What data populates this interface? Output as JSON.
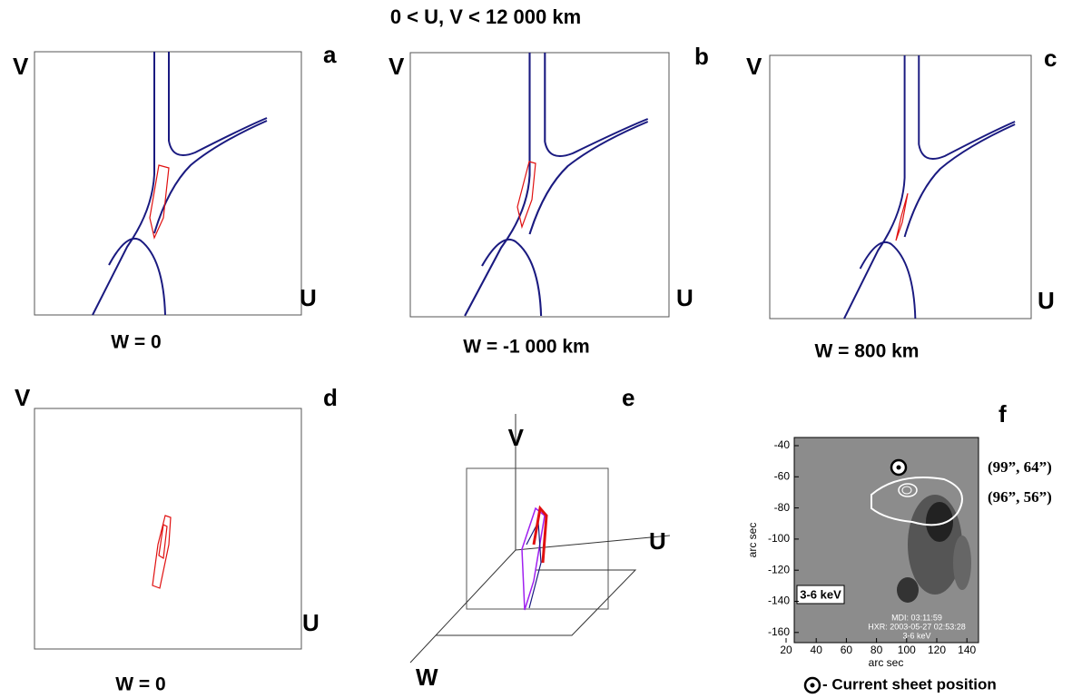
{
  "title": "0 < U, V < 12 000 km",
  "panels": [
    {
      "letter": "a",
      "v_label": "V",
      "u_label": "U",
      "caption": "W = 0"
    },
    {
      "letter": "b",
      "v_label": "V",
      "u_label": "U",
      "caption": "W = -1 000 km"
    },
    {
      "letter": "c",
      "v_label": "V",
      "u_label": "U",
      "caption": "W = 800 km"
    },
    {
      "letter": "d",
      "v_label": "V",
      "u_label": "U",
      "caption": "W = 0"
    }
  ],
  "panel_e": {
    "letter": "e",
    "v_label": "V",
    "u_label": "U",
    "w_label": "W"
  },
  "panel_f": {
    "letter": "f",
    "yticks": [
      "-40",
      "-60",
      "-80",
      "-100",
      "-120",
      "-140",
      "-160"
    ],
    "xticks": [
      "20",
      "40",
      "60",
      "80",
      "100",
      "120",
      "140"
    ],
    "x_label": "arc sec",
    "y_label": "arc sec",
    "energy_label": "3-6 keV",
    "mdi_label": "MDI: 03:11:59",
    "hxr_label": "HXR: 2003-05-27  02:53:28",
    "small_energy_label": "3-6 keV",
    "coord_1": "(99”, 64”)",
    "coord_2": "(96”, 56”)",
    "legend": "- Current sheet position"
  }
}
